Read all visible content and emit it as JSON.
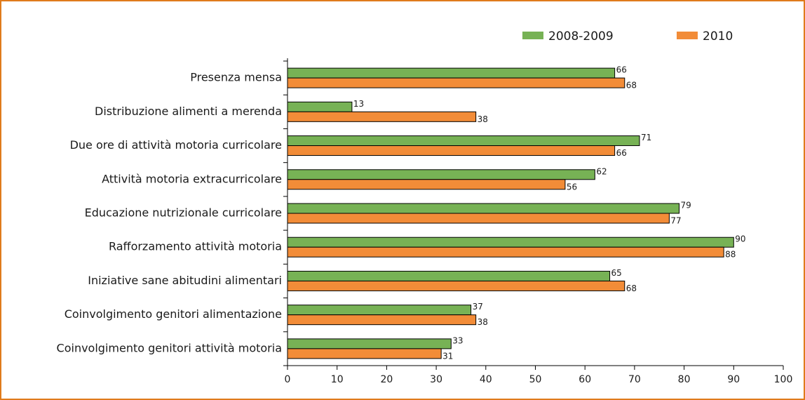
{
  "chart_data": {
    "type": "bar",
    "orientation": "horizontal",
    "categories": [
      "Presenza mensa",
      "Distribuzione alimenti a merenda",
      "Due ore di attività motoria curricolare",
      "Attività motoria extracurricolare",
      "Educazione nutrizionale curricolare",
      "Rafforzamento attività motoria",
      "Iniziative sane abitudini alimentari",
      "Coinvolgimento genitori alimentazione",
      "Coinvolgimento genitori attività motoria"
    ],
    "series": [
      {
        "name": "2008-2009",
        "color": "#77b255",
        "values": [
          66,
          13,
          71,
          62,
          79,
          90,
          65,
          37,
          33
        ]
      },
      {
        "name": "2010",
        "color": "#f28c38",
        "values": [
          68,
          38,
          66,
          56,
          77,
          88,
          68,
          38,
          31
        ]
      }
    ],
    "xlim": [
      0,
      100
    ],
    "xticks": [
      0,
      10,
      20,
      30,
      40,
      50,
      60,
      70,
      80,
      90,
      100
    ],
    "legend": "top"
  }
}
